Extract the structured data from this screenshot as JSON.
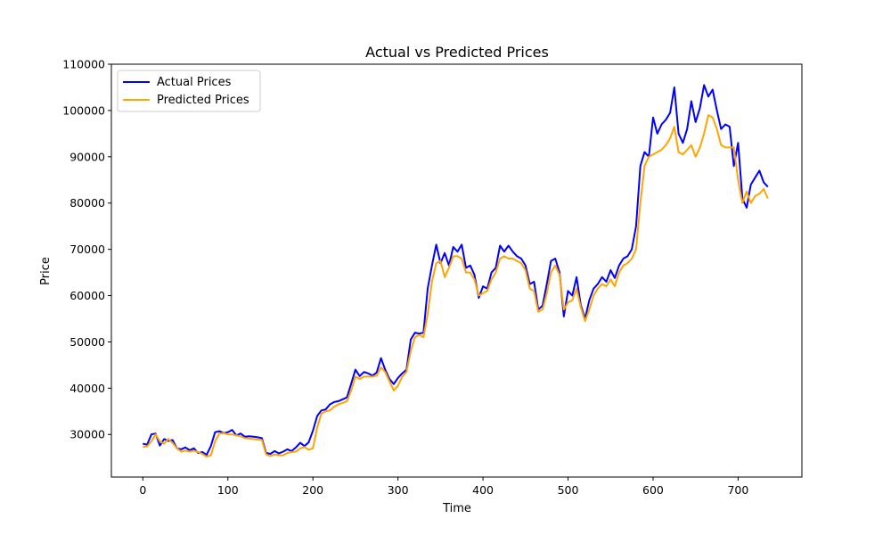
{
  "chart_data": {
    "type": "line",
    "title": "Actual vs Predicted Prices",
    "xlabel": "Time",
    "ylabel": "Price",
    "xlim": [
      -37,
      775
    ],
    "ylim": [
      20800,
      110000
    ],
    "xticks": [
      0,
      100,
      200,
      300,
      400,
      500,
      600,
      700
    ],
    "yticks": [
      30000,
      40000,
      50000,
      60000,
      70000,
      80000,
      90000,
      100000,
      110000
    ],
    "grid": false,
    "legend_position": "top-left",
    "series": [
      {
        "name": "Actual Prices",
        "color": "#0000ff",
        "points": [
          [
            0,
            28000
          ],
          [
            5,
            27800
          ],
          [
            10,
            30000
          ],
          [
            15,
            30200
          ],
          [
            20,
            27600
          ],
          [
            25,
            29000
          ],
          [
            30,
            28600
          ],
          [
            35,
            28800
          ],
          [
            40,
            27000
          ],
          [
            45,
            26800
          ],
          [
            50,
            27200
          ],
          [
            55,
            26600
          ],
          [
            60,
            27000
          ],
          [
            65,
            26000
          ],
          [
            70,
            26200
          ],
          [
            75,
            25600
          ],
          [
            80,
            27500
          ],
          [
            85,
            30500
          ],
          [
            90,
            30700
          ],
          [
            95,
            30300
          ],
          [
            100,
            30500
          ],
          [
            105,
            31000
          ],
          [
            110,
            29800
          ],
          [
            115,
            30200
          ],
          [
            120,
            29500
          ],
          [
            125,
            29600
          ],
          [
            130,
            29500
          ],
          [
            135,
            29400
          ],
          [
            140,
            29200
          ],
          [
            145,
            26000
          ],
          [
            150,
            25800
          ],
          [
            155,
            26400
          ],
          [
            160,
            25900
          ],
          [
            165,
            26300
          ],
          [
            170,
            26800
          ],
          [
            175,
            26400
          ],
          [
            180,
            27200
          ],
          [
            185,
            28200
          ],
          [
            190,
            27500
          ],
          [
            195,
            28300
          ],
          [
            200,
            30800
          ],
          [
            205,
            34000
          ],
          [
            210,
            35200
          ],
          [
            215,
            35400
          ],
          [
            220,
            36500
          ],
          [
            225,
            37000
          ],
          [
            230,
            37200
          ],
          [
            235,
            37600
          ],
          [
            240,
            38000
          ],
          [
            245,
            41000
          ],
          [
            250,
            44000
          ],
          [
            255,
            42600
          ],
          [
            260,
            43500
          ],
          [
            265,
            43200
          ],
          [
            270,
            42700
          ],
          [
            275,
            43400
          ],
          [
            280,
            46500
          ],
          [
            285,
            44000
          ],
          [
            290,
            42000
          ],
          [
            295,
            40900
          ],
          [
            300,
            42200
          ],
          [
            305,
            43200
          ],
          [
            310,
            44000
          ],
          [
            315,
            50500
          ],
          [
            320,
            52000
          ],
          [
            325,
            51800
          ],
          [
            330,
            52000
          ],
          [
            335,
            61500
          ],
          [
            340,
            66500
          ],
          [
            345,
            71000
          ],
          [
            350,
            67000
          ],
          [
            355,
            69200
          ],
          [
            360,
            66500
          ],
          [
            365,
            70500
          ],
          [
            370,
            69500
          ],
          [
            375,
            71000
          ],
          [
            380,
            66000
          ],
          [
            385,
            66500
          ],
          [
            390,
            64500
          ],
          [
            395,
            59500
          ],
          [
            400,
            62000
          ],
          [
            405,
            61500
          ],
          [
            410,
            65000
          ],
          [
            415,
            66000
          ],
          [
            420,
            70800
          ],
          [
            425,
            69500
          ],
          [
            430,
            70800
          ],
          [
            435,
            69500
          ],
          [
            440,
            68500
          ],
          [
            445,
            68000
          ],
          [
            450,
            66500
          ],
          [
            455,
            62500
          ],
          [
            460,
            63000
          ],
          [
            465,
            57000
          ],
          [
            470,
            57800
          ],
          [
            475,
            62500
          ],
          [
            480,
            67500
          ],
          [
            485,
            68000
          ],
          [
            490,
            65000
          ],
          [
            495,
            55500
          ],
          [
            500,
            61000
          ],
          [
            505,
            60000
          ],
          [
            510,
            64000
          ],
          [
            515,
            58000
          ],
          [
            520,
            55000
          ],
          [
            525,
            59000
          ],
          [
            530,
            61500
          ],
          [
            535,
            62500
          ],
          [
            540,
            64000
          ],
          [
            545,
            63000
          ],
          [
            550,
            65500
          ],
          [
            555,
            63800
          ],
          [
            560,
            66500
          ],
          [
            565,
            68000
          ],
          [
            570,
            68500
          ],
          [
            575,
            70000
          ],
          [
            580,
            75000
          ],
          [
            585,
            88000
          ],
          [
            590,
            91000
          ],
          [
            595,
            90000
          ],
          [
            600,
            98500
          ],
          [
            605,
            95000
          ],
          [
            610,
            97000
          ],
          [
            615,
            98000
          ],
          [
            620,
            99500
          ],
          [
            625,
            105000
          ],
          [
            630,
            95000
          ],
          [
            635,
            93000
          ],
          [
            640,
            96000
          ],
          [
            645,
            102000
          ],
          [
            650,
            97500
          ],
          [
            655,
            100500
          ],
          [
            660,
            105500
          ],
          [
            665,
            103000
          ],
          [
            670,
            104500
          ],
          [
            675,
            100000
          ],
          [
            680,
            96000
          ],
          [
            685,
            97000
          ],
          [
            690,
            96500
          ],
          [
            695,
            88000
          ],
          [
            700,
            93000
          ],
          [
            705,
            81000
          ],
          [
            710,
            79000
          ],
          [
            715,
            84000
          ],
          [
            720,
            85500
          ],
          [
            725,
            87000
          ],
          [
            730,
            84500
          ],
          [
            735,
            83500
          ]
        ]
      },
      {
        "name": "Predicted Prices",
        "color": "#ffa500",
        "points": [
          [
            0,
            27300
          ],
          [
            5,
            27400
          ],
          [
            10,
            28500
          ],
          [
            15,
            30000
          ],
          [
            20,
            28500
          ],
          [
            25,
            28000
          ],
          [
            30,
            29000
          ],
          [
            35,
            28200
          ],
          [
            40,
            27000
          ],
          [
            45,
            26300
          ],
          [
            50,
            26500
          ],
          [
            55,
            26300
          ],
          [
            60,
            26500
          ],
          [
            65,
            26200
          ],
          [
            70,
            25800
          ],
          [
            75,
            25200
          ],
          [
            80,
            25500
          ],
          [
            85,
            28500
          ],
          [
            90,
            30200
          ],
          [
            95,
            30300
          ],
          [
            100,
            30000
          ],
          [
            105,
            30000
          ],
          [
            110,
            29800
          ],
          [
            115,
            29600
          ],
          [
            120,
            29200
          ],
          [
            125,
            29100
          ],
          [
            130,
            29000
          ],
          [
            135,
            28900
          ],
          [
            140,
            28800
          ],
          [
            145,
            25700
          ],
          [
            150,
            25300
          ],
          [
            155,
            25700
          ],
          [
            160,
            25500
          ],
          [
            165,
            25500
          ],
          [
            170,
            26000
          ],
          [
            175,
            26200
          ],
          [
            180,
            26300
          ],
          [
            185,
            27000
          ],
          [
            190,
            27300
          ],
          [
            195,
            26700
          ],
          [
            200,
            27000
          ],
          [
            205,
            31500
          ],
          [
            210,
            34500
          ],
          [
            215,
            35000
          ],
          [
            220,
            35200
          ],
          [
            225,
            36000
          ],
          [
            230,
            36500
          ],
          [
            235,
            36800
          ],
          [
            240,
            37200
          ],
          [
            245,
            39500
          ],
          [
            250,
            42500
          ],
          [
            255,
            42000
          ],
          [
            260,
            42500
          ],
          [
            265,
            42500
          ],
          [
            270,
            42500
          ],
          [
            275,
            42700
          ],
          [
            280,
            44500
          ],
          [
            285,
            43500
          ],
          [
            290,
            41500
          ],
          [
            295,
            39500
          ],
          [
            300,
            40500
          ],
          [
            305,
            42500
          ],
          [
            310,
            43500
          ],
          [
            315,
            48000
          ],
          [
            320,
            51000
          ],
          [
            325,
            51500
          ],
          [
            330,
            51000
          ],
          [
            335,
            56000
          ],
          [
            340,
            63000
          ],
          [
            345,
            67000
          ],
          [
            350,
            67500
          ],
          [
            355,
            64000
          ],
          [
            360,
            66000
          ],
          [
            365,
            68500
          ],
          [
            370,
            68500
          ],
          [
            375,
            68000
          ],
          [
            380,
            65000
          ],
          [
            385,
            65000
          ],
          [
            390,
            63500
          ],
          [
            395,
            60000
          ],
          [
            400,
            60500
          ],
          [
            405,
            61000
          ],
          [
            410,
            63500
          ],
          [
            415,
            65000
          ],
          [
            420,
            68000
          ],
          [
            425,
            68500
          ],
          [
            430,
            68000
          ],
          [
            435,
            68000
          ],
          [
            440,
            67500
          ],
          [
            445,
            67000
          ],
          [
            450,
            65500
          ],
          [
            455,
            61500
          ],
          [
            460,
            61000
          ],
          [
            465,
            56500
          ],
          [
            470,
            57000
          ],
          [
            475,
            60500
          ],
          [
            480,
            65000
          ],
          [
            485,
            66500
          ],
          [
            490,
            64500
          ],
          [
            495,
            57000
          ],
          [
            500,
            58500
          ],
          [
            505,
            59000
          ],
          [
            510,
            61500
          ],
          [
            515,
            57500
          ],
          [
            520,
            54500
          ],
          [
            525,
            57000
          ],
          [
            530,
            60000
          ],
          [
            535,
            61500
          ],
          [
            540,
            62500
          ],
          [
            545,
            62000
          ],
          [
            550,
            63500
          ],
          [
            555,
            62000
          ],
          [
            560,
            65000
          ],
          [
            565,
            66500
          ],
          [
            570,
            67000
          ],
          [
            575,
            68000
          ],
          [
            580,
            70000
          ],
          [
            585,
            80000
          ],
          [
            590,
            88000
          ],
          [
            595,
            90000
          ],
          [
            600,
            90500
          ],
          [
            605,
            91000
          ],
          [
            610,
            91500
          ],
          [
            615,
            92500
          ],
          [
            620,
            94000
          ],
          [
            625,
            96500
          ],
          [
            630,
            91000
          ],
          [
            635,
            90500
          ],
          [
            640,
            91500
          ],
          [
            645,
            92500
          ],
          [
            650,
            90000
          ],
          [
            655,
            92000
          ],
          [
            660,
            95000
          ],
          [
            665,
            99000
          ],
          [
            670,
            98500
          ],
          [
            675,
            96000
          ],
          [
            680,
            92500
          ],
          [
            685,
            92000
          ],
          [
            690,
            92000
          ],
          [
            695,
            92000
          ],
          [
            700,
            85000
          ],
          [
            705,
            80000
          ],
          [
            710,
            82500
          ],
          [
            715,
            80000
          ],
          [
            720,
            81500
          ],
          [
            725,
            82000
          ],
          [
            730,
            83000
          ],
          [
            735,
            81000
          ]
        ]
      }
    ]
  }
}
